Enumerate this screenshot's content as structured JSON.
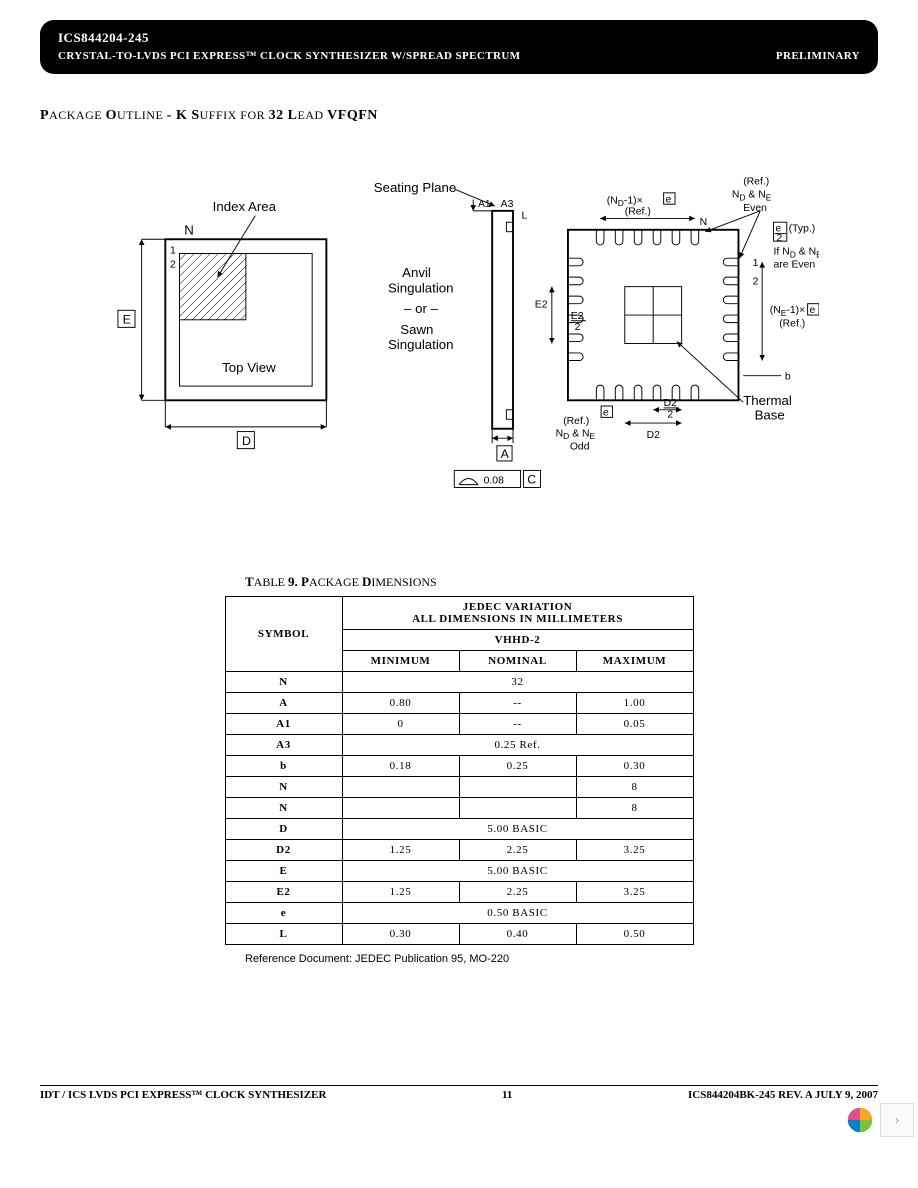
{
  "header": {
    "part": "ICS844204-245",
    "desc": "CRYSTAL-TO-LVDS PCI EXPRESS™ CLOCK SYNTHESIZER W/SPREAD SPECTRUM",
    "status": "PRELIMINARY"
  },
  "section_title": {
    "p": "P",
    "ackage": "ACKAGE ",
    "o": "O",
    "utline": "UTLINE ",
    "dash": "- K S",
    "uffix": "UFFIX  FOR ",
    "leads": "32 L",
    "ead": "EAD ",
    "pkg": "VFQFN"
  },
  "diagram": {
    "index_area": "Index Area",
    "top_view": "Top View",
    "N": "N",
    "one": "1",
    "two": "2",
    "E": "E",
    "D": "D",
    "seating_plane": "Seating Plane",
    "A1": "A1",
    "A3": "A3",
    "A": "A",
    "L": "L",
    "C": "C",
    "anvil": "Anvil",
    "sing": "Singulation",
    "or": "– or –",
    "sawn": "Sawn",
    "flat": "0.08",
    "ref": "(Ref.)",
    "nd1e": "(N",
    "nd1d": "D",
    "nd1t": "-1)×",
    "esym": "e",
    "nd_ne": "N",
    "sub_d": "D",
    "amp": " & N",
    "sub_e": "E",
    "even": "Even",
    "e2": "e",
    "two_sup": "2",
    "typ": "(Typ.)",
    "if_even_1": "If N",
    "if_even_2": " & N",
    "are_even": "are Even",
    "ne1": "(N",
    "ne1e": "E",
    "ne1t": "-1)×",
    "b": "b",
    "thermal": "Thermal",
    "base": "Base",
    "D2": "D2",
    "D2_2": "D2",
    "slash2": "2",
    "E2": "E2",
    "E2_2": "E2",
    "odd": "Odd"
  },
  "table": {
    "caption_t": "T",
    "caption_able": "ABLE ",
    "caption_n": "9. P",
    "caption_ack": "ACKAGE  ",
    "caption_d": "D",
    "caption_im": "IMENSIONS",
    "jedec_var": "JEDEC VARIATION",
    "all_dims": "ALL DIMENSIONS IN MILLIMETERS",
    "variant": "VHHD-2",
    "symbol": "SYMBOL",
    "min": "MINIMUM",
    "nom": "NOMINAL",
    "max": "MAXIMUM",
    "rows": [
      {
        "sym": "N",
        "min": "",
        "nom": "32",
        "max": "",
        "span": true
      },
      {
        "sym": "A",
        "min": "0.80",
        "nom": "--",
        "max": "1.00"
      },
      {
        "sym": "A1",
        "min": "0",
        "nom": "--",
        "max": "0.05"
      },
      {
        "sym": "A3",
        "min": "",
        "nom": "0.25 Ref.",
        "max": "",
        "span": true
      },
      {
        "sym": "b",
        "min": "0.18",
        "nom": "0.25",
        "max": "0.30"
      },
      {
        "sym": "N",
        "min": "",
        "nom": "",
        "max": "8"
      },
      {
        "sym": "N",
        "min": "",
        "nom": "",
        "max": "8"
      },
      {
        "sym": "D",
        "min": "",
        "nom": "5.00 BASIC",
        "max": "",
        "span": true
      },
      {
        "sym": "D2",
        "min": "1.25",
        "nom": "2.25",
        "max": "3.25"
      },
      {
        "sym": "E",
        "min": "",
        "nom": "5.00 BASIC",
        "max": "",
        "span": true
      },
      {
        "sym": "E2",
        "min": "1.25",
        "nom": "2.25",
        "max": "3.25"
      },
      {
        "sym": "e",
        "min": "",
        "nom": "0.50 BASIC",
        "max": "",
        "span": true
      },
      {
        "sym": "L",
        "min": "0.30",
        "nom": "0.40",
        "max": "0.50"
      }
    ],
    "ref_doc": "Reference Document:  JEDEC Publication 95, MO-220"
  },
  "footer": {
    "left_a": "IDT",
    "left_b": " / ICS",
    "left_c": "   LVDS PCI EXPRESS™ CLOCK SYNTHESIZER",
    "page": "11",
    "right": "ICS844204BK-245   REV. A   JULY 9, 2007"
  },
  "dock": {
    "colors": [
      "#f5a623",
      "#7ac142",
      "#0082c8",
      "#e94b8b"
    ],
    "chevron": "›"
  }
}
